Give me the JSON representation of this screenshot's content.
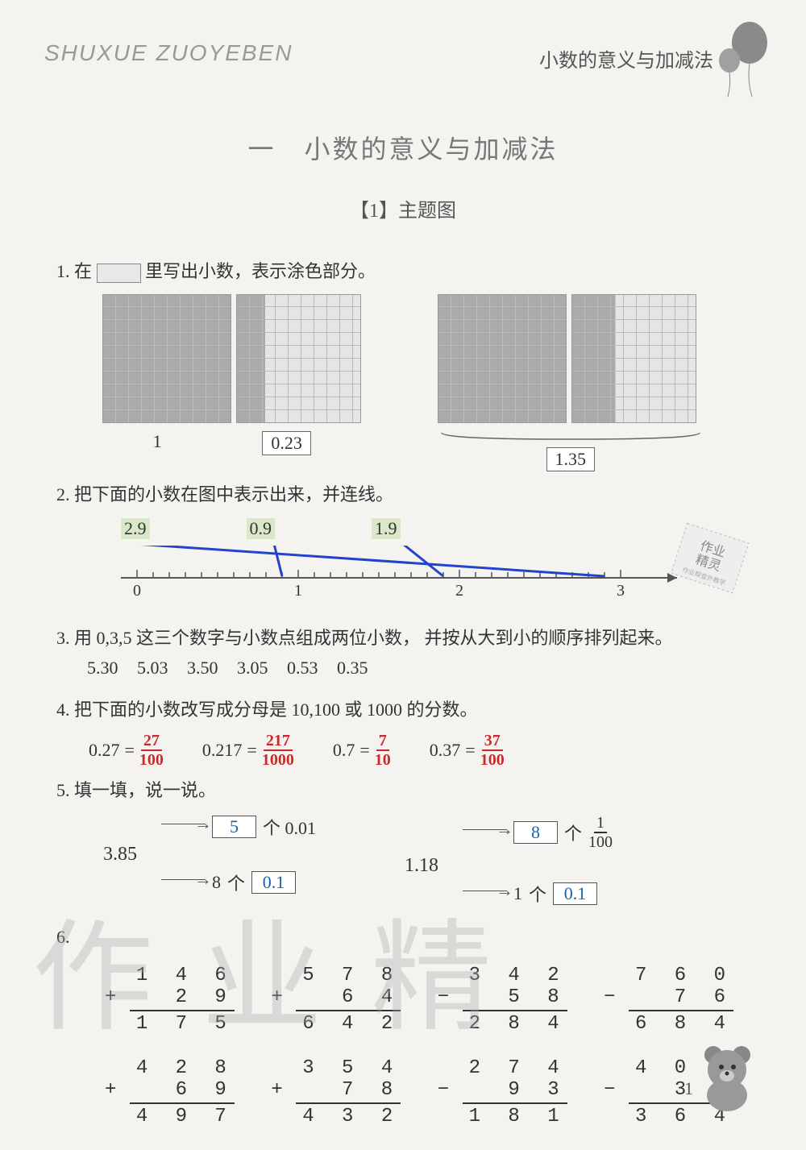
{
  "header": {
    "left_pinyin": "SHUXUE ZUOYEBEN",
    "right_chapter": "小数的意义与加减法"
  },
  "title": {
    "main": "一　小数的意义与加减法",
    "sub": "【1】主题图"
  },
  "q1": {
    "prompt_prefix": "1. 在",
    "prompt_suffix": "里写出小数，表示涂色部分。",
    "grids": [
      {
        "fill_pct": 100,
        "label": "1",
        "boxed": false
      },
      {
        "fill_pct": 23,
        "label": "0.23",
        "boxed": true
      },
      {
        "fill_pct": 100,
        "label": "",
        "boxed": false
      },
      {
        "fill_pct": 35,
        "label": "",
        "boxed": false
      }
    ],
    "combined_answer": "1.35"
  },
  "q2": {
    "prompt": "2. 把下面的小数在图中表示出来，并连线。",
    "values": [
      "2.9",
      "0.9",
      "1.9"
    ],
    "ticks": [
      "0",
      "1",
      "2",
      "3"
    ],
    "line_color": "#2244cc",
    "axis_color": "#555555"
  },
  "q3": {
    "prompt": "3. 用 0,3,5 这三个数字与小数点组成两位小数， 并按从大到小的顺序排列起来。",
    "answers": [
      "5.30",
      "5.03",
      "3.50",
      "3.05",
      "0.53",
      "0.35"
    ]
  },
  "q4": {
    "prompt": "4. 把下面的小数改写成分母是 10,100 或 1000 的分数。",
    "items": [
      {
        "decimal": "0.27",
        "num": "27",
        "den": "100"
      },
      {
        "decimal": "0.217",
        "num": "217",
        "den": "1000"
      },
      {
        "decimal": "0.7",
        "num": "7",
        "den": "10"
      },
      {
        "decimal": "0.37",
        "num": "37",
        "den": "100"
      }
    ]
  },
  "q5": {
    "prompt": "5. 填一填，说一说。",
    "left": {
      "number": "3.85",
      "top_count": "5",
      "top_unit": "个 0.01",
      "bottom_count": "8",
      "bottom_unit": "0.1",
      "bottom_prefix": "个"
    },
    "right": {
      "number": "1.18",
      "top_count": "8",
      "top_unit_frac_num": "1",
      "top_unit_frac_den": "100",
      "top_unit_prefix": "个",
      "bottom_count": "1",
      "bottom_unit": "0.1",
      "bottom_prefix": "个"
    }
  },
  "q6": {
    "label": "6.",
    "problems_row1": [
      {
        "a": "1 4 6",
        "op": "+",
        "b": "2 9",
        "ans": "1 7 5"
      },
      {
        "a": "5 7 8",
        "op": "+",
        "b": "6 4",
        "ans": "6 4 2"
      },
      {
        "a": "3 4 2",
        "op": "−",
        "b": "5 8",
        "ans": "2 8 4"
      },
      {
        "a": "7 6 0",
        "op": "−",
        "b": "7 6",
        "ans": "6 8 4"
      }
    ],
    "problems_row2": [
      {
        "a": "4 2 8",
        "op": "+",
        "b": "6 9",
        "ans": "4 9 7"
      },
      {
        "a": "3 5 4",
        "op": "+",
        "b": "7 8",
        "ans": "4 3 2"
      },
      {
        "a": "2 7 4",
        "op": "−",
        "b": "9 3",
        "ans": "1 8 1"
      },
      {
        "a": "4 0 0",
        "op": "−",
        "b": "3 6",
        "ans": "3 6 4"
      }
    ]
  },
  "stamp": {
    "line1": "作业",
    "line2": "精灵",
    "line3": "作业帮查外教学"
  },
  "watermark": "作业精",
  "page_number": "1",
  "colors": {
    "answer_red": "#c92a2a",
    "answer_blue": "#1864ab",
    "balloon": "#8a8a8a"
  }
}
